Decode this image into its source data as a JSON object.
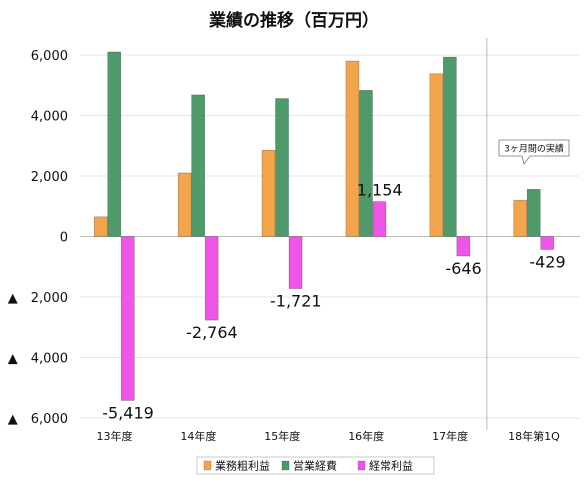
{
  "chart_data": {
    "type": "bar",
    "title": "業績の推移（百万円）",
    "categories": [
      "13年度",
      "14年度",
      "15年度",
      "16年度",
      "17年度",
      "18年第1Q"
    ],
    "series": [
      {
        "name": "業務粗利益",
        "color": "#f3a54e",
        "values": [
          650,
          2100,
          2850,
          5800,
          5380,
          1200
        ]
      },
      {
        "name": "営業経費",
        "color": "#4f9a6a",
        "values": [
          6100,
          4680,
          4560,
          4830,
          5930,
          1560
        ]
      },
      {
        "name": "経常利益",
        "color": "#ee55e8",
        "values": [
          -5419,
          -2764,
          -1721,
          1154,
          -646,
          -429
        ]
      }
    ],
    "ylim": [
      -6000,
      6000
    ],
    "yticks": [
      6000,
      4000,
      2000,
      0,
      -2000,
      -4000,
      -6000
    ],
    "ytick_labels": [
      "6,000",
      "4,000",
      "2,000",
      "0",
      "▲　2,000",
      "▲　4,000",
      "▲　6,000"
    ],
    "data_labels": [
      "-5,419",
      "-2,764",
      "-1,721",
      "1,154",
      "-646",
      "-429"
    ],
    "grid": true,
    "legend_position": "bottom",
    "annotation": "3ヶ月間の実績"
  }
}
